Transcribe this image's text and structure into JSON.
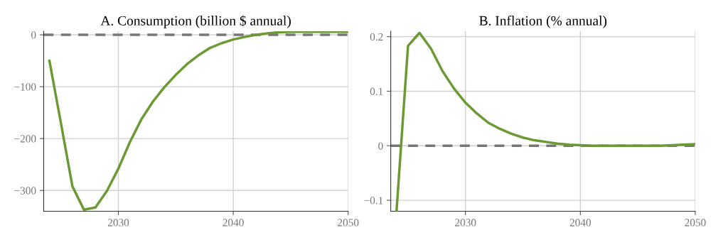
{
  "chart_data": [
    {
      "type": "line",
      "title": "A. Consumption (billion $ annual)",
      "x": [
        2024,
        2025,
        2026,
        2027,
        2028,
        2029,
        2030,
        2031,
        2032,
        2033,
        2034,
        2035,
        2036,
        2037,
        2038,
        2039,
        2040,
        2041,
        2042,
        2043,
        2044,
        2045,
        2046,
        2047,
        2048,
        2049,
        2050
      ],
      "series": [
        {
          "color": "#6b9a34",
          "values": [
            -50,
            -170,
            -292,
            -337,
            -333,
            -301,
            -258,
            -207,
            -163,
            -129,
            -101,
            -77,
            -56,
            -39,
            -25,
            -16,
            -9,
            -4,
            0,
            3,
            5,
            6,
            6,
            6,
            6,
            6,
            6
          ]
        }
      ],
      "xlim": [
        2023.5,
        2050
      ],
      "xticks": [
        2030,
        2040,
        2050
      ],
      "ylim": [
        -340,
        7
      ],
      "yticks": [
        {
          "value": -300,
          "label": "−300"
        },
        {
          "value": -200,
          "label": "−200"
        },
        {
          "value": -100,
          "label": "−100"
        },
        0
      ],
      "grid": true,
      "line_style": "solid",
      "ref_lines": [
        {
          "axis": "y",
          "value": 0,
          "color": "#777777",
          "line_style": "dashed"
        }
      ]
    },
    {
      "type": "line",
      "title": "B. Inflation (% annual)",
      "x": [
        2024,
        2025,
        2026,
        2027,
        2028,
        2029,
        2030,
        2031,
        2032,
        2033,
        2034,
        2035,
        2036,
        2037,
        2038,
        2039,
        2040,
        2041,
        2042,
        2043,
        2044,
        2045,
        2046,
        2047,
        2048,
        2049,
        2050
      ],
      "series": [
        {
          "color": "#6b9a34",
          "values": [
            -0.12,
            0.183,
            0.207,
            0.178,
            0.137,
            0.105,
            0.079,
            0.059,
            0.042,
            0.031,
            0.022,
            0.015,
            0.01,
            0.007,
            0.004,
            0.002,
            0.001,
            0.0,
            0.0,
            0.0,
            0.0,
            0.0,
            0.0,
            0.0,
            0.001,
            0.002,
            0.003
          ]
        }
      ],
      "xlim": [
        2023.5,
        2050
      ],
      "xticks": [
        2030,
        2040,
        2050
      ],
      "ylim": [
        -0.12,
        0.21
      ],
      "yticks": [
        {
          "value": -0.1,
          "label": "−0.1"
        },
        0,
        0.1,
        0.2
      ],
      "grid": true,
      "line_style": "solid",
      "ref_lines": [
        {
          "axis": "y",
          "value": 0,
          "color": "#777777",
          "line_style": "dashed"
        }
      ]
    }
  ]
}
